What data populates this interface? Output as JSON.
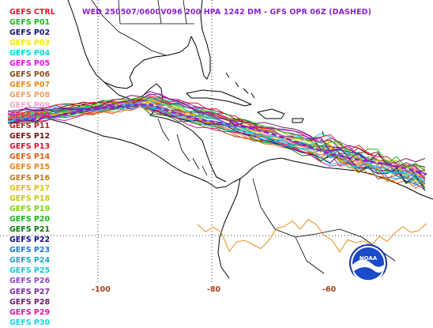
{
  "title": "WED 250507/0600V096  200 HPA 1242 DM - GFS OPR 06Z (DASHED)",
  "legend": [
    {
      "label": "GEFS CTRL",
      "color": "#e8132b"
    },
    {
      "label": "GEFS P01",
      "color": "#11c511"
    },
    {
      "label": "GEFS P02",
      "color": "#101070"
    },
    {
      "label": "GEFS P03",
      "color": "#f5e413"
    },
    {
      "label": "GEFS P04",
      "color": "#0ad8d8"
    },
    {
      "label": "GEFS P05",
      "color": "#e414e4"
    },
    {
      "label": "GEFS P06",
      "color": "#8a4a17"
    },
    {
      "label": "GEFS P07",
      "color": "#e88b1a"
    },
    {
      "label": "GEFS P08",
      "color": "#e8a26c"
    },
    {
      "label": "GEFS P09",
      "color": "#f5a5c9"
    },
    {
      "label": "GEFS P10",
      "color": "#e22b6d"
    },
    {
      "label": "GEFS P11",
      "color": "#c81a1a"
    },
    {
      "label": "GEFS P12",
      "color": "#7a1010"
    },
    {
      "label": "GEFS P13",
      "color": "#e8132b"
    },
    {
      "label": "GEFS P14",
      "color": "#e25b14"
    },
    {
      "label": "GEFS P15",
      "color": "#e8841a"
    },
    {
      "label": "GEFS P16",
      "color": "#c87a1a"
    },
    {
      "label": "GEFS P17",
      "color": "#e0c014"
    },
    {
      "label": "GEFS P18",
      "color": "#c8c814"
    },
    {
      "label": "GEFS P19",
      "color": "#7ad414"
    },
    {
      "label": "GEFS P20",
      "color": "#14b814"
    },
    {
      "label": "GEFS P21",
      "color": "#0a7a0a"
    },
    {
      "label": "GEFS P22",
      "color": "#101080"
    },
    {
      "label": "GEFS P23",
      "color": "#1a7ae8"
    },
    {
      "label": "GEFS P24",
      "color": "#1aa6c8"
    },
    {
      "label": "GEFS P25",
      "color": "#14c8d4"
    },
    {
      "label": "GEFS P26",
      "color": "#8a4ac8"
    },
    {
      "label": "GEFS P27",
      "color": "#7a2aa6"
    },
    {
      "label": "GEFS P28",
      "color": "#6a1a6a"
    },
    {
      "label": "GEFS P29",
      "color": "#e414a0"
    },
    {
      "label": "GEFS P30",
      "color": "#14d4e8"
    }
  ],
  "longitude_labels": [
    {
      "text": "-100",
      "lon": -100
    },
    {
      "text": "-80",
      "lon": -80
    },
    {
      "text": "-60",
      "lon": -60
    }
  ],
  "gfs_operational_style": "dashed",
  "logo": {
    "text": "NOAA"
  }
}
